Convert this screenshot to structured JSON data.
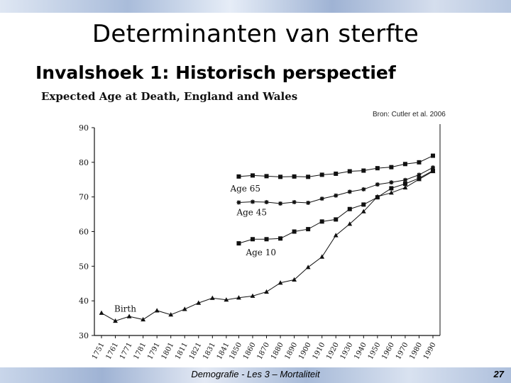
{
  "slide": {
    "title": "Determinanten van sterfte",
    "subtitle": "Invalshoek 1: Historisch perspectief",
    "source": "Bron: Cutler et al. 2006",
    "footer": "Demografie - Les 3 – Mortaliteit",
    "page_number": "27"
  },
  "colors": {
    "ink": "#111111",
    "band_light": "#dfe7f3",
    "band_dark": "#9fb3d4"
  },
  "chart_data": {
    "type": "line",
    "title": "Expected Age at Death, England and Wales",
    "xlabel": "",
    "ylabel": "",
    "ylim": [
      30,
      90
    ],
    "yticks": [
      30,
      40,
      50,
      60,
      70,
      80,
      90
    ],
    "xtick_labels": [
      "1751",
      "1761",
      "1771",
      "1781",
      "1791",
      "1801",
      "1811",
      "1821",
      "1831",
      "1841",
      "1850",
      "1860",
      "1870",
      "1880",
      "1890",
      "1900",
      "1910",
      "1920",
      "1930",
      "1940",
      "1950",
      "1960",
      "1970",
      "1980",
      "1990"
    ],
    "grid": false,
    "legend": "inline labels",
    "series": [
      {
        "name": "Birth",
        "marker": "triangle",
        "x": [
          1751,
          1761,
          1771,
          1781,
          1791,
          1801,
          1811,
          1821,
          1831,
          1841,
          1850,
          1860,
          1870,
          1880,
          1890,
          1900,
          1910,
          1920,
          1930,
          1940,
          1950,
          1960,
          1970,
          1980,
          1990
        ],
        "values": [
          36.5,
          34.2,
          35.5,
          34.6,
          37.2,
          36.0,
          37.6,
          39.4,
          40.8,
          40.3,
          40.9,
          41.4,
          42.6,
          45.2,
          46.1,
          49.7,
          52.7,
          58.9,
          62.2,
          65.8,
          70.1,
          71.2,
          72.7,
          75.1,
          77.4
        ]
      },
      {
        "name": "Age 10",
        "marker": "square",
        "x": [
          1850,
          1860,
          1870,
          1880,
          1890,
          1900,
          1910,
          1920,
          1930,
          1940,
          1950,
          1960,
          1970,
          1980,
          1990
        ],
        "values": [
          56.6,
          57.8,
          57.8,
          58.0,
          60.0,
          60.7,
          62.9,
          63.5,
          66.5,
          67.8,
          69.9,
          72.5,
          73.8,
          75.4,
          77.6
        ]
      },
      {
        "name": "Age 45",
        "marker": "star",
        "x": [
          1850,
          1860,
          1870,
          1880,
          1890,
          1900,
          1910,
          1920,
          1930,
          1940,
          1950,
          1960,
          1970,
          1980,
          1990
        ],
        "values": [
          68.4,
          68.6,
          68.5,
          68.1,
          68.5,
          68.3,
          69.5,
          70.4,
          71.5,
          72.2,
          73.6,
          74.2,
          74.9,
          76.4,
          78.5
        ]
      },
      {
        "name": "Age 65",
        "marker": "square",
        "x": [
          1850,
          1860,
          1870,
          1880,
          1890,
          1900,
          1910,
          1920,
          1930,
          1940,
          1950,
          1960,
          1970,
          1980,
          1990
        ],
        "values": [
          75.9,
          76.2,
          76.0,
          75.8,
          75.9,
          75.8,
          76.4,
          76.7,
          77.4,
          77.6,
          78.3,
          78.6,
          79.5,
          80.0,
          81.9
        ]
      }
    ],
    "series_label_positions": [
      "near-start",
      "below-start",
      "below-start",
      "below-start"
    ]
  }
}
